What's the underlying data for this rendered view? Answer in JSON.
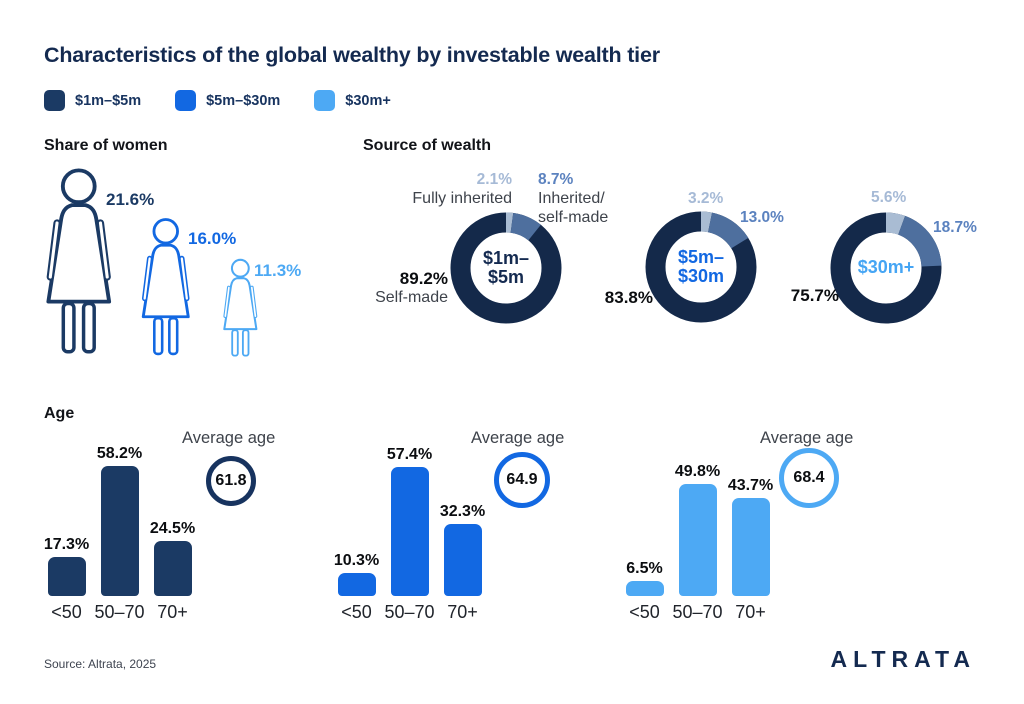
{
  "title": "Characteristics of the global wealthy by investable wealth tier",
  "colors": {
    "navy": "#1B3A64",
    "bright_blue": "#1268E2",
    "light_blue": "#4DA9F4",
    "donut_ring": "#14294A",
    "slice_light": "#A9BCD3",
    "slice_steel": "#4E6F9E",
    "label_light": "#A6BAD6",
    "label_steel": "#5B82BF",
    "title_navy": "#142A50"
  },
  "legend": {
    "items": [
      {
        "label": "$1m–$5m",
        "color": "#1B3A64"
      },
      {
        "label": "$5m–$30m",
        "color": "#1268E2"
      },
      {
        "label": "$30m+",
        "color": "#4DA9F4"
      }
    ]
  },
  "sections": {
    "women_heading": "Share of women",
    "wealth_heading": "Source of wealth",
    "age_heading": "Age"
  },
  "footer": {
    "source": "Source: Altrata, 2025",
    "logo": "ALTRATA"
  },
  "chart_data": [
    {
      "id": "share_of_women",
      "type": "pictogram",
      "title": "Share of women",
      "categories": [
        "$1m–$5m",
        "$5m–$30m",
        "$30m+"
      ],
      "values": [
        21.6,
        16.0,
        11.3
      ],
      "value_labels": [
        "21.6%",
        "16.0%",
        "11.3%"
      ],
      "unit": "percent"
    },
    {
      "id": "source_of_wealth",
      "type": "donut",
      "title": "Source of wealth",
      "categories": [
        "$1m–$5m",
        "$5m–$30m",
        "$30m+"
      ],
      "slice_names": {
        "fully_inherited": "Fully inherited",
        "inherited_self_made": "Inherited/\nself-made",
        "self_made": "Self-made"
      },
      "donuts": [
        {
          "tier": "$1m–$5m",
          "center_label": "$1m–\n$5m",
          "fully_inherited": 2.1,
          "inherited_self_made": 8.7,
          "self_made": 89.2,
          "labels": {
            "fully_inherited": "2.1%",
            "inherited_self_made": "8.7%",
            "self_made": "89.2%"
          }
        },
        {
          "tier": "$5m–$30m",
          "center_label": "$5m–\n$30m",
          "fully_inherited": 3.2,
          "inherited_self_made": 13.0,
          "self_made": 83.8,
          "labels": {
            "fully_inherited": "3.2%",
            "inherited_self_made": "13.0%",
            "self_made": "83.8%"
          }
        },
        {
          "tier": "$30m+",
          "center_label": "$30m+",
          "fully_inherited": 5.6,
          "inherited_self_made": 18.7,
          "self_made": 75.7,
          "labels": {
            "fully_inherited": "5.6%",
            "inherited_self_made": "18.7%",
            "self_made": "75.7%"
          }
        }
      ]
    },
    {
      "id": "age",
      "type": "bar",
      "title": "Age",
      "categories": [
        "<50",
        "50–70",
        "70+"
      ],
      "average_age_label": "Average age",
      "ylim": [
        0,
        65
      ],
      "grid": false,
      "series": [
        {
          "name": "$1m–$5m",
          "values": [
            17.3,
            58.2,
            24.5
          ],
          "value_labels": [
            "17.3%",
            "58.2%",
            "24.5%"
          ],
          "average_age": 61.8
        },
        {
          "name": "$5m–$30m",
          "values": [
            10.3,
            57.4,
            32.3
          ],
          "value_labels": [
            "10.3%",
            "57.4%",
            "32.3%"
          ],
          "average_age": 64.9
        },
        {
          "name": "$30m+",
          "values": [
            6.5,
            49.8,
            43.7
          ],
          "value_labels": [
            "6.5%",
            "49.8%",
            "43.7%"
          ],
          "average_age": 68.4
        }
      ]
    }
  ]
}
